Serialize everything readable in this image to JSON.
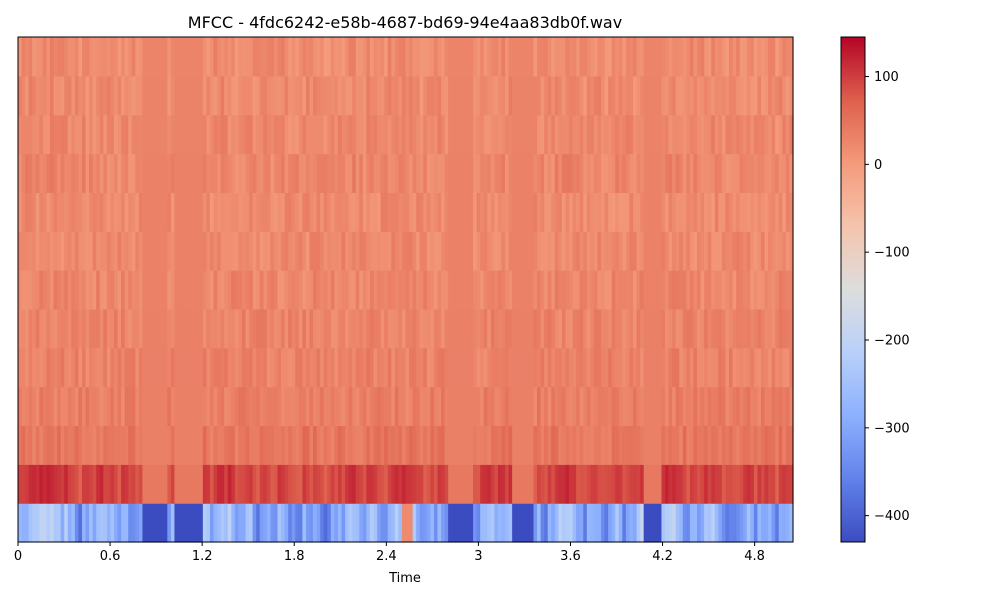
{
  "chart_data": {
    "type": "heatmap",
    "title": "MFCC - 4fdc6242-e58b-4687-bd69-94e4aa83db0f.wav",
    "xlabel": "Time",
    "ylabel": "",
    "xlim": [
      0,
      5.05
    ],
    "x_ticks": [
      0,
      0.6,
      1.2,
      1.8,
      2.4,
      3,
      3.6,
      4.2,
      4.8
    ],
    "x_tick_labels": [
      "0",
      "0.6",
      "1.2",
      "1.8",
      "2.4",
      "3",
      "3.6",
      "4.2",
      "4.8"
    ],
    "n_coefficients": 13,
    "n_frames": 218,
    "colormap": "coolwarm",
    "colorbar": {
      "vmin": -430,
      "vmax": 145,
      "ticks": [
        100,
        0,
        -100,
        -200,
        -300,
        -400
      ],
      "tick_labels": [
        "100",
        "0",
        "−100",
        "−200",
        "−300",
        "−400"
      ]
    },
    "coefficient_approx_means": [
      -230,
      115,
      45,
      35,
      30,
      28,
      25,
      22,
      20,
      18,
      16,
      14,
      12
    ],
    "silent_segments": [
      [
        0.8,
        0.98
      ],
      [
        1.02,
        1.2
      ],
      [
        2.8,
        2.96
      ],
      [
        3.22,
        3.36
      ],
      [
        4.08,
        4.2
      ]
    ],
    "grid": false
  }
}
